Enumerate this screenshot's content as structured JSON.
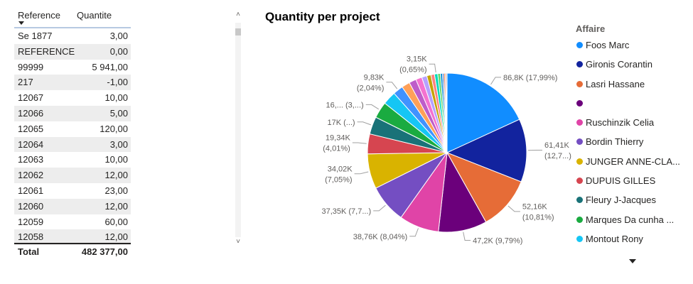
{
  "table": {
    "headers": {
      "reference": "Reference",
      "quantity": "Quantite"
    },
    "rows": [
      {
        "reference": "Se 1877",
        "quantity": "3,00"
      },
      {
        "reference": "REFERENCE",
        "quantity": "0,00"
      },
      {
        "reference": "99999",
        "quantity": "5 941,00"
      },
      {
        "reference": "217",
        "quantity": "-1,00"
      },
      {
        "reference": "12067",
        "quantity": "10,00"
      },
      {
        "reference": "12066",
        "quantity": "5,00"
      },
      {
        "reference": "12065",
        "quantity": "120,00"
      },
      {
        "reference": "12064",
        "quantity": "3,00"
      },
      {
        "reference": "12063",
        "quantity": "10,00"
      },
      {
        "reference": "12062",
        "quantity": "12,00"
      },
      {
        "reference": "12061",
        "quantity": "23,00"
      },
      {
        "reference": "12060",
        "quantity": "12,00"
      },
      {
        "reference": "12059",
        "quantity": "60,00"
      },
      {
        "reference": "12058",
        "quantity": "12,00"
      }
    ],
    "total": {
      "label": "Total",
      "value": "482 377,00"
    }
  },
  "scrollbar": {
    "up_glyph": "˄",
    "down_glyph": "˅"
  },
  "chart_data": {
    "type": "pie",
    "title": "Quantity per project",
    "legend_title": "Affaire",
    "legend_position": "right",
    "slices": [
      {
        "name": "Foos Marc",
        "value": 86.8,
        "label": "86,8K (17,99%)",
        "color": "#118DFF"
      },
      {
        "name": "Gironis Corantin",
        "value": 61.41,
        "label_lines": [
          "61,41K",
          "(12,7...)"
        ],
        "color": "#12239E"
      },
      {
        "name": "Lasri Hassane",
        "value": 52.16,
        "label_lines": [
          "52,16K",
          "(10,81%)"
        ],
        "color": "#E66C37"
      },
      {
        "name": "",
        "value": 47.2,
        "label": "47,2K (9,79%)",
        "color": "#6B007B"
      },
      {
        "name": "Ruschinzik Celia",
        "value": 38.76,
        "label": "38,76K (8,04%)",
        "color": "#E044A7"
      },
      {
        "name": "Bordin Thierry",
        "value": 37.35,
        "label": "37,35K (7,7...)",
        "color": "#744EC2"
      },
      {
        "name": "JUNGER ANNE-CLA...",
        "value": 34.02,
        "label_lines": [
          "34,02K",
          "(7,05%)"
        ],
        "color": "#D9B300"
      },
      {
        "name": "DUPUIS GILLES",
        "value": 19.34,
        "label_lines": [
          "19,34K",
          "(4,01%)"
        ],
        "color": "#D64550"
      },
      {
        "name": "Fleury J-Jacques",
        "value": 17,
        "label": "17K (...)",
        "color": "#197278"
      },
      {
        "name": "Marques Da cunha ...",
        "value": 16,
        "label": "16,... (3,...)",
        "color": "#1AAB40"
      },
      {
        "name": "Montout Rony",
        "value": 13,
        "color": "#15C6F4"
      },
      {
        "value": 9.83,
        "label_lines": [
          "9,83K",
          "(2,04%)"
        ],
        "color": "#4092FF"
      },
      {
        "value": 8,
        "color": "#FFA058"
      },
      {
        "value": 7,
        "color": "#BE5DC9"
      },
      {
        "value": 6,
        "color": "#F472D0"
      },
      {
        "value": 5,
        "color": "#B5A1FF"
      },
      {
        "value": 4,
        "color": "#C4A200"
      },
      {
        "value": 3.5,
        "color": "#FF8080"
      },
      {
        "value": 3.15,
        "label_lines": [
          "3,15K",
          "(0,65%)"
        ],
        "color": "#00DBBC"
      },
      {
        "value": 2.5,
        "color": "#5BD667"
      },
      {
        "value": 2,
        "color": "#0091D5"
      },
      {
        "value": 1.5,
        "color": "#4668C5"
      },
      {
        "value": 1.2,
        "color": "#FF6300"
      },
      {
        "value": 1,
        "color": "#99001A"
      },
      {
        "value": 0.8,
        "color": "#35B586"
      }
    ]
  }
}
